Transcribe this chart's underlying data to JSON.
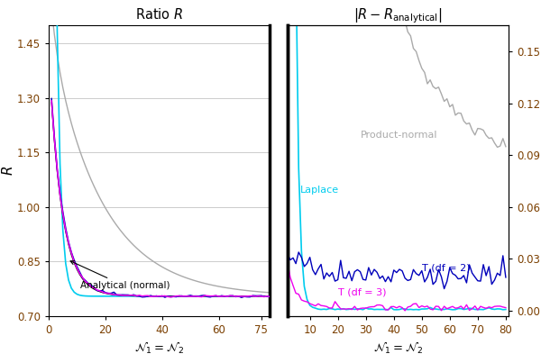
{
  "left_xlim": [
    1,
    78
  ],
  "left_ylim": [
    0.7,
    1.5
  ],
  "right_xlim": [
    2,
    81
  ],
  "right_ylim": [
    -0.003,
    0.165
  ],
  "left_title": "Ratio $\\mathit{R}$",
  "right_title": "$|R - R_{\\mathrm{analytical}}|$",
  "left_xlabel": "$\\mathcal{N}_1 = \\mathcal{N}_2$",
  "right_xlabel": "$\\mathcal{N}_1 = \\mathcal{N}_2$",
  "left_ylabel": "$\\mathit{R}$",
  "left_yticks": [
    0.7,
    0.85,
    1.0,
    1.15,
    1.3,
    1.45
  ],
  "left_ytick_labels": [
    "0.70",
    "0.85",
    "1.00",
    "1.15",
    "1.30",
    "1.45"
  ],
  "right_yticks": [
    0.0,
    0.03,
    0.06,
    0.09,
    0.12,
    0.15
  ],
  "right_ytick_labels": [
    "0.00",
    "0.03",
    "0.06",
    "0.09",
    "0.12",
    "0.15"
  ],
  "left_xticks": [
    0,
    20,
    40,
    60,
    75
  ],
  "left_xtick_labels": [
    "0",
    "20",
    "40",
    "60",
    "75"
  ],
  "right_xticks": [
    10,
    20,
    30,
    40,
    50,
    60,
    70,
    80
  ],
  "right_xtick_labels": [
    "10",
    "20",
    "30",
    "40",
    "50",
    "60",
    "70",
    "80"
  ],
  "color_gray": "#aaaaaa",
  "color_blue": "#0000bb",
  "color_magenta": "#ee00ee",
  "color_cyan": "#00ccee",
  "color_black": "#000000",
  "color_tick": "#7B3F00",
  "bg_color": "#ffffff",
  "grid_color": "#cccccc",
  "separator_color": "#000000"
}
